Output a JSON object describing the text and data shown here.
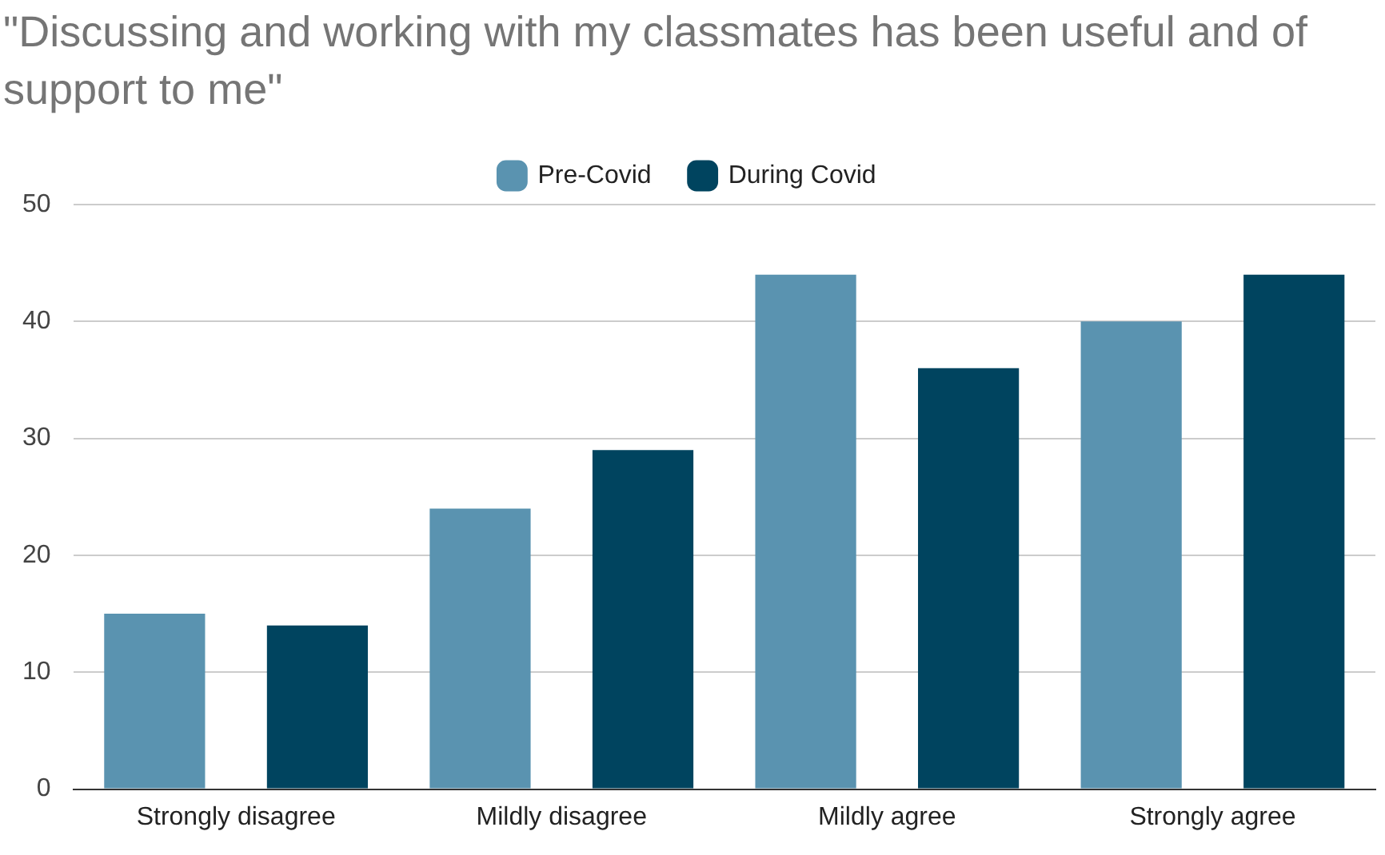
{
  "chart_data": {
    "type": "bar",
    "title": "\"Discussing and working with my classmates has been useful and of support to me\"",
    "categories": [
      "Strongly disagree",
      "Mildly disagree",
      "Mildly agree",
      "Strongly agree"
    ],
    "series": [
      {
        "name": "Pre-Covid",
        "color": "#5a93b0",
        "values": [
          15,
          24,
          44,
          40
        ]
      },
      {
        "name": "During Covid",
        "color": "#00445f",
        "values": [
          14,
          29,
          36,
          44
        ]
      }
    ],
    "ylim": [
      0,
      50
    ],
    "yticks": [
      0,
      10,
      20,
      30,
      40,
      50
    ],
    "grid": "y",
    "legend": "top"
  }
}
